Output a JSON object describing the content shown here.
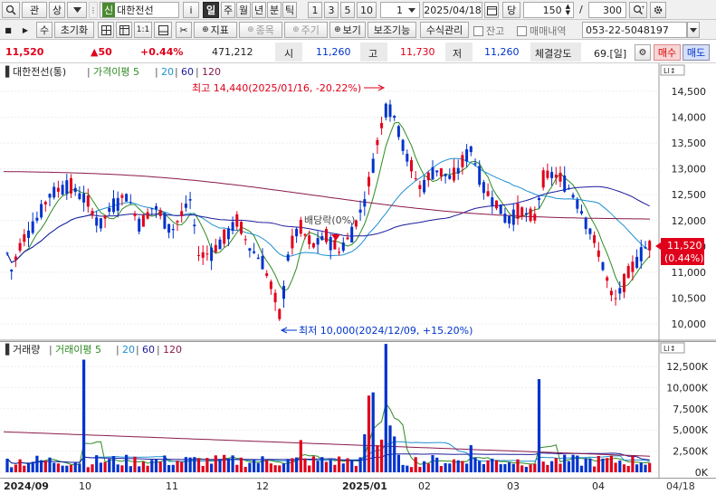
{
  "toolbar1": {
    "search_icon": "magnifier-icon",
    "btn_watch": "관",
    "btn_ascend": "상",
    "code_badge": "신",
    "stock_name": "대한전선",
    "btn_info": "i",
    "periods": [
      "일",
      "주",
      "월",
      "년",
      "분",
      "틱"
    ],
    "minutes": [
      "1",
      "3",
      "5",
      "10"
    ],
    "tick_value": "1",
    "date": "2025/04/18",
    "calendar_icon": "calendar-icon",
    "unit_label": "당",
    "count": "150",
    "slash": "/",
    "total": "300",
    "zoom_icon": "zoom-plus-icon",
    "settings_icon": "gear-icon"
  },
  "toolbar2": {
    "btn_num": "수",
    "btn_reset": "초기화",
    "btn_indicator": "지표",
    "btn_stock": "종목",
    "btn_period": "주기",
    "btn_view": "보기",
    "btn_aux": "보조기능",
    "btn_formula": "수식관리",
    "chk_balance": "잔고",
    "chk_trades": "매매내역",
    "account": "053-22-5048197"
  },
  "quote": {
    "price": "11,520",
    "change": "▲50",
    "pct": "+0.44%",
    "volume": "471,212",
    "open_label": "시",
    "open": "11,260",
    "high_label": "고",
    "high": "11,730",
    "low_label": "저",
    "low": "11,260",
    "strength_label": "체결강도",
    "strength": "69.[일]",
    "buy_btn": "매수",
    "sell_btn": "매도"
  },
  "price_panel": {
    "legend_name": "대한전선(통)",
    "legend_ma": "가격이평 5",
    "legend_20": "20",
    "legend_60": "60",
    "legend_120": "120",
    "high_note": "최고 14,440(2025/01/16, -20.22%)",
    "low_note": "최저 10,000(2024/12/09, +15.20%)",
    "dividend": "배당락(0%)",
    "current_tag": "11,520",
    "current_pct": "(0.44%)",
    "y_ticks": [
      "14,500",
      "14,000",
      "13,500",
      "13,000",
      "12,500",
      "12,000",
      "11,500",
      "11,000",
      "10,500",
      "10,000"
    ]
  },
  "volume_panel": {
    "legend_name": "거래량",
    "legend_ma": "거래이평 5",
    "legend_20": "20",
    "legend_60": "60",
    "legend_120": "120",
    "y_ticks": [
      "12,500K",
      "10,000K",
      "7,500K",
      "5,000K",
      "2,500K",
      "0K"
    ]
  },
  "x_axis": {
    "labels": [
      "2024/09",
      "10",
      "11",
      "12",
      "2025/01",
      "02",
      "03",
      "04"
    ],
    "cursor": "04/18"
  },
  "colors": {
    "up": "#e0001b",
    "down": "#0033cc",
    "ma5": "#2e8b22",
    "ma20": "#1e90d0",
    "ma60": "#1c1c9c",
    "ma120": "#8a1a4a"
  }
}
